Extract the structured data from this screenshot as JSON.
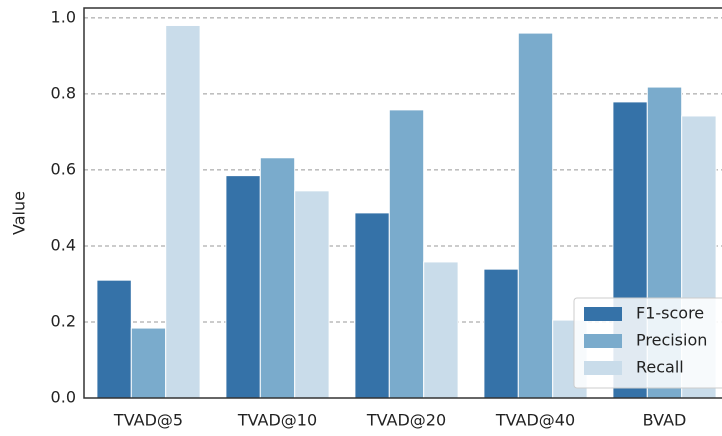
{
  "chart_data": {
    "type": "bar",
    "y_label": "Value",
    "categories": [
      "TVAD@5",
      "TVAD@10",
      "TVAD@20",
      "TVAD@40",
      "BVAD"
    ],
    "series": [
      {
        "name": "F1-score",
        "color": "#3572a8",
        "values": [
          0.31,
          0.585,
          0.487,
          0.339,
          0.779
        ]
      },
      {
        "name": "Precision",
        "color": "#7aabcc",
        "values": [
          0.184,
          0.632,
          0.758,
          0.96,
          0.818
        ]
      },
      {
        "name": "Recall",
        "color": "#c9dcea",
        "values": [
          0.98,
          0.545,
          0.358,
          0.205,
          0.742
        ]
      }
    ],
    "ylim": [
      0,
      1.026
    ],
    "yticks": [
      {
        "value": 0,
        "label": "0.0"
      },
      0.2,
      0.4,
      0.6,
      0.8,
      {
        "value": 1,
        "label": "1.0"
      }
    ],
    "grid": true,
    "legend": "lower right"
  }
}
